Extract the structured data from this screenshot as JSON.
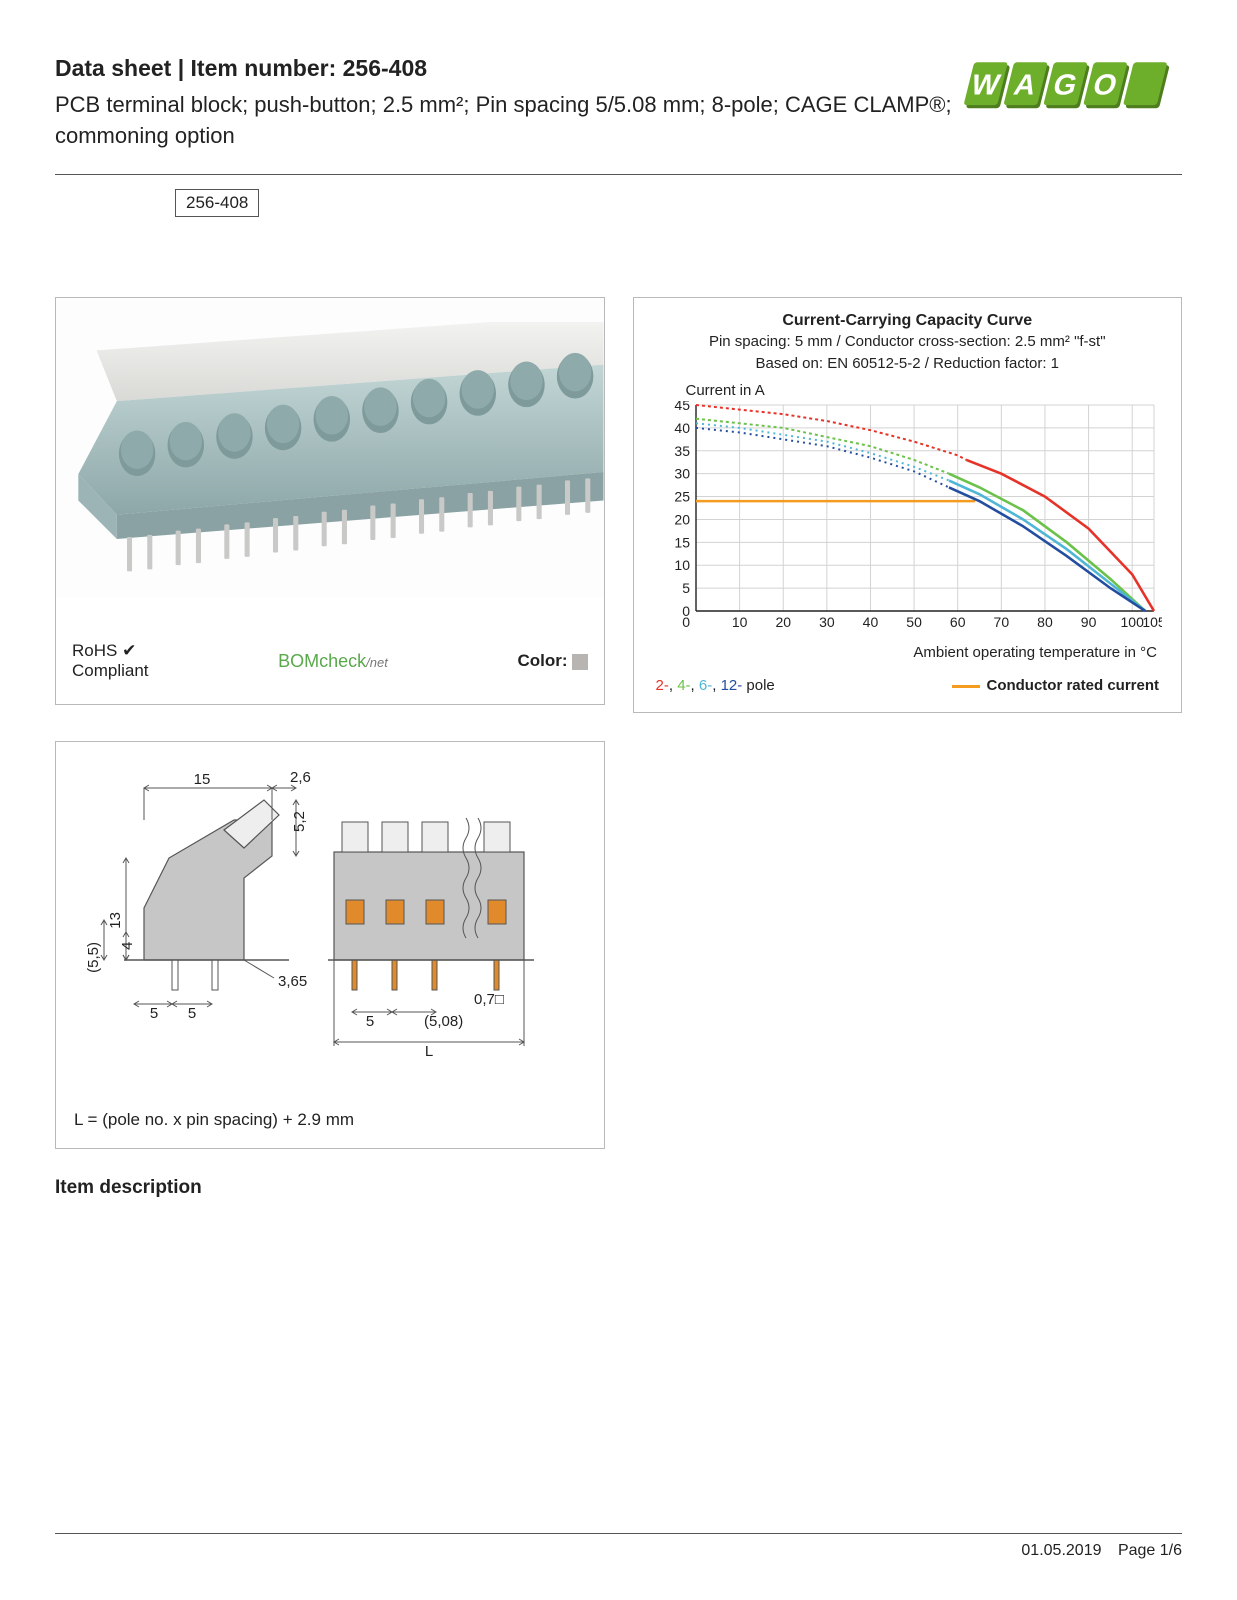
{
  "header": {
    "title_line": "Data sheet  |  Item number: 256-408",
    "subtitle": "PCB terminal block; push-button; 2.5 mm²; Pin spacing 5/5.08 mm; 8-pole; CAGE CLAMP®; commoning option",
    "item_badge": "256-408"
  },
  "logo": {
    "color": "#6dae2a",
    "shadow": "#4e7d1e"
  },
  "photo_panel": {
    "rohs_line1": "RoHS",
    "rohs_line2": "Compliant",
    "bomcheck": "BOMcheck",
    "bomcheck_suffix": "/net",
    "color_label": "Color:",
    "swatch_color": "#b7b4b1",
    "block_body_color": "#a9c1c2",
    "block_top_color": "#e8e8e6",
    "pin_color": "#c9cac8"
  },
  "chart": {
    "title": "Current-Carrying Capacity Curve",
    "sub1": "Pin spacing: 5 mm / Conductor cross-section: 2.5 mm² \"f-st\"",
    "sub2": "Based on: EN 60512-5-2 / Reduction factor: 1",
    "y_label": "Current in A",
    "x_label": "Ambient operating temperature in °C",
    "y_ticks": [
      0,
      5,
      10,
      15,
      20,
      25,
      30,
      35,
      40,
      45
    ],
    "x_ticks": [
      0,
      10,
      20,
      30,
      40,
      50,
      60,
      70,
      80,
      90,
      100,
      105
    ],
    "xlim": [
      0,
      105
    ],
    "ylim": [
      0,
      45
    ],
    "grid_color": "#d3d3d3",
    "axis_color": "#222222",
    "background": "#ffffff",
    "rated_current": {
      "color": "#f39c1f",
      "value": 24,
      "x_end": 64
    },
    "series": [
      {
        "name": "2-pole",
        "color": "#e63329",
        "dash": "3 3",
        "solid_from": 62,
        "points": [
          [
            0,
            45
          ],
          [
            10,
            44
          ],
          [
            20,
            43
          ],
          [
            30,
            41.5
          ],
          [
            40,
            39.5
          ],
          [
            50,
            37
          ],
          [
            60,
            34
          ],
          [
            62,
            33
          ],
          [
            70,
            30
          ],
          [
            80,
            25
          ],
          [
            90,
            18
          ],
          [
            100,
            8
          ],
          [
            105,
            0
          ]
        ]
      },
      {
        "name": "4-pole",
        "color": "#6bc24a",
        "dash": "3 3",
        "solid_from": 58,
        "points": [
          [
            0,
            42
          ],
          [
            10,
            41
          ],
          [
            20,
            40
          ],
          [
            30,
            38
          ],
          [
            40,
            36
          ],
          [
            50,
            33
          ],
          [
            58,
            30
          ],
          [
            65,
            27
          ],
          [
            75,
            22
          ],
          [
            85,
            15
          ],
          [
            95,
            7
          ],
          [
            103,
            0
          ]
        ]
      },
      {
        "name": "6-pole",
        "color": "#4fb6d6",
        "dash": "2 4",
        "solid_from": 58,
        "points": [
          [
            0,
            41
          ],
          [
            10,
            40
          ],
          [
            20,
            38.5
          ],
          [
            30,
            37
          ],
          [
            40,
            34.5
          ],
          [
            50,
            31.5
          ],
          [
            58,
            28.5
          ],
          [
            65,
            25.5
          ],
          [
            75,
            20
          ],
          [
            85,
            13.5
          ],
          [
            95,
            6
          ],
          [
            103,
            0
          ]
        ]
      },
      {
        "name": "12-pole",
        "color": "#234ea0",
        "dash": "2 4",
        "solid_from": 58,
        "points": [
          [
            0,
            40
          ],
          [
            10,
            39
          ],
          [
            20,
            37.5
          ],
          [
            30,
            36
          ],
          [
            40,
            33.5
          ],
          [
            50,
            30.5
          ],
          [
            58,
            27
          ],
          [
            65,
            24
          ],
          [
            75,
            18.5
          ],
          [
            85,
            12
          ],
          [
            95,
            5
          ],
          [
            103,
            0
          ]
        ]
      }
    ],
    "legend_poles": [
      {
        "label": "2-",
        "color": "#e63329"
      },
      {
        "label": "4-",
        "color": "#6bc24a"
      },
      {
        "label": "6-",
        "color": "#4fb6d6"
      },
      {
        "label": "12-",
        "color": "#234ea0"
      }
    ],
    "legend_poles_suffix": " pole",
    "legend_rated": "Conductor rated current"
  },
  "dims_panel": {
    "caption": "L = (pole no. x pin spacing) + 2.9 mm",
    "line_color": "#555555",
    "body_color": "#c6c6c6",
    "accent_color": "#e08a2c",
    "labels": {
      "w15": "15",
      "w26": "2,6",
      "h52": "5,2",
      "h13": "13",
      "h55": "(5,5)",
      "h4": "4",
      "p5a": "5",
      "p5b": "5",
      "d365": "3,65",
      "d07": "0,7□",
      "p5c": "5",
      "p508": "(5,08)",
      "L": "L"
    }
  },
  "section_title": "Item description",
  "footer": {
    "date": "01.05.2019",
    "page": "Page 1/6"
  }
}
